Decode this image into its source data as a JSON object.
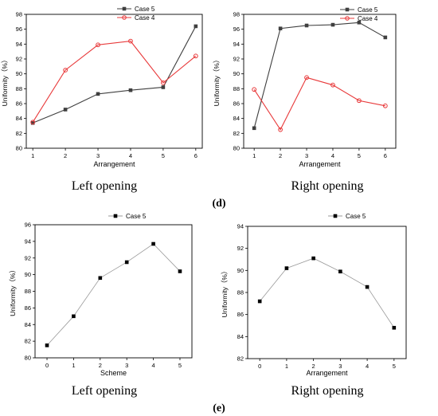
{
  "panel_labels": {
    "d": "(d)",
    "e": "(e)"
  },
  "captions": {
    "top_left": "Left opening",
    "top_right": "Right opening",
    "bottom_left": "Left opening",
    "bottom_right": "Right opening"
  },
  "colors": {
    "case5": "#3f3f3f",
    "case4": "#e8393a",
    "single": "#000000",
    "axis": "#000000"
  },
  "chart_data": [
    {
      "id": "d_left",
      "type": "line",
      "xlabel": "Arrangement",
      "ylabel": "Uniformity（%）",
      "x": [
        1,
        2,
        3,
        4,
        5,
        6
      ],
      "xticks": [
        1,
        2,
        3,
        4,
        5,
        6
      ],
      "xlim": [
        0.8,
        6.2
      ],
      "ylim": [
        80,
        98
      ],
      "yticks": [
        80,
        82,
        84,
        86,
        88,
        90,
        92,
        94,
        96,
        98
      ],
      "legend": "top-right",
      "series": [
        {
          "name": "Case 5",
          "marker": "square",
          "color": "#3f3f3f",
          "values": [
            83.4,
            85.2,
            87.3,
            87.8,
            88.2,
            96.4
          ]
        },
        {
          "name": "Case 4",
          "marker": "circle",
          "color": "#e8393a",
          "values": [
            83.5,
            90.5,
            93.9,
            94.4,
            88.8,
            92.4
          ]
        }
      ]
    },
    {
      "id": "d_right",
      "type": "line",
      "xlabel": "Arrangement",
      "ylabel": "Uniformity（%）",
      "x": [
        1,
        2,
        3,
        4,
        5,
        6
      ],
      "xticks": [
        1,
        2,
        3,
        4,
        5,
        6
      ],
      "xlim": [
        0.6,
        6.4
      ],
      "ylim": [
        80,
        98
      ],
      "yticks": [
        80,
        82,
        84,
        86,
        88,
        90,
        92,
        94,
        96,
        98
      ],
      "legend": "top-right",
      "series": [
        {
          "name": "Case 5",
          "marker": "square",
          "color": "#3f3f3f",
          "values": [
            82.7,
            96.1,
            96.5,
            96.6,
            96.9,
            94.9
          ]
        },
        {
          "name": "Case 4",
          "marker": "circle",
          "color": "#e8393a",
          "values": [
            87.9,
            82.5,
            89.5,
            88.5,
            86.4,
            85.7
          ]
        }
      ]
    },
    {
      "id": "e_left",
      "type": "line",
      "xlabel": "Scheme",
      "ylabel": "Uniformity（%）",
      "x": [
        0,
        1,
        2,
        3,
        4,
        5
      ],
      "xticks": [
        0,
        1,
        2,
        3,
        4,
        5
      ],
      "xlim": [
        -0.45,
        5.45
      ],
      "ylim": [
        80,
        96
      ],
      "yticks": [
        80,
        82,
        84,
        86,
        88,
        90,
        92,
        94,
        96
      ],
      "legend": "top-right",
      "series": [
        {
          "name": "Case 5",
          "marker": "square",
          "color": "#000000",
          "values": [
            81.5,
            85.0,
            89.6,
            91.5,
            93.7,
            90.4
          ]
        }
      ]
    },
    {
      "id": "e_right",
      "type": "line",
      "xlabel": "Arrangement",
      "ylabel": "Uniformity（%）",
      "x": [
        0,
        1,
        2,
        3,
        4,
        5
      ],
      "xticks": [
        0,
        1,
        2,
        3,
        4,
        5
      ],
      "xlim": [
        -0.45,
        5.45
      ],
      "ylim": [
        82,
        94
      ],
      "yticks": [
        82,
        84,
        86,
        88,
        90,
        92,
        94
      ],
      "legend": "top-right",
      "series": [
        {
          "name": "Case 5",
          "marker": "square",
          "color": "#000000",
          "values": [
            87.2,
            90.2,
            91.1,
            89.9,
            88.5,
            84.8
          ]
        }
      ]
    }
  ]
}
